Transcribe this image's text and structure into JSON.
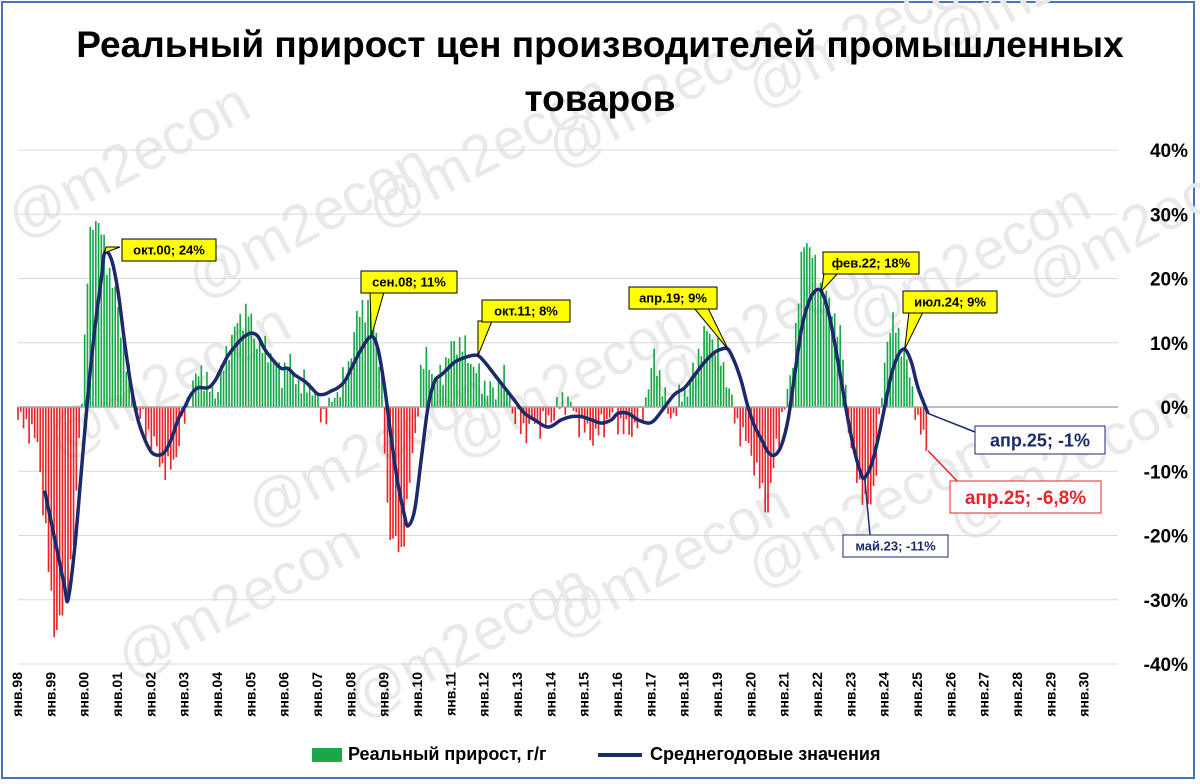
{
  "chart_data": {
    "type": "bar+line",
    "title": "Реальный прирост цен производителей промышленных товаров",
    "ylim": [
      -40,
      40
    ],
    "y_ticks": [
      "40%",
      "30%",
      "20%",
      "10%",
      "0%",
      "-10%",
      "-20%",
      "-30%",
      "-40%"
    ],
    "y_tick_values": [
      40,
      30,
      20,
      10,
      0,
      -10,
      -20,
      -30,
      -40
    ],
    "x_tick_labels": [
      "янв.98",
      "янв.99",
      "янв.00",
      "янв.01",
      "янв.02",
      "янв.03",
      "янв.04",
      "янв.05",
      "янв.06",
      "янв.07",
      "янв.08",
      "янв.09",
      "янв.10",
      "янв.11",
      "янв.12",
      "янв.13",
      "янв.14",
      "янв.15",
      "янв.16",
      "янв.17",
      "янв.18",
      "янв.19",
      "янв.20",
      "янв.21",
      "янв.22",
      "янв.23",
      "янв.24",
      "янв.25",
      "янв.26",
      "янв.27",
      "янв.28",
      "янв.29",
      "янв.30"
    ],
    "x_start_year": 1998,
    "x_end_year": 2031,
    "grid": true,
    "legend_position": "bottom",
    "colors": {
      "positive": "#19a74a",
      "negative": "#e8252b",
      "line": "#1b2a6b",
      "grid": "#d9d9d9",
      "callout_fill": "#ffff00"
    },
    "series": [
      {
        "name": "Реальный прирост, г/г",
        "type": "bar",
        "anchors": [
          [
            1998.0,
            -2
          ],
          [
            1998.3,
            -3
          ],
          [
            1998.6,
            -6
          ],
          [
            1998.8,
            -18
          ],
          [
            1999.0,
            -30
          ],
          [
            1999.1,
            -35
          ],
          [
            1999.3,
            -33
          ],
          [
            1999.5,
            -28
          ],
          [
            1999.7,
            -20
          ],
          [
            1999.8,
            -8
          ],
          [
            2000.0,
            10
          ],
          [
            2000.1,
            22
          ],
          [
            2000.2,
            28
          ],
          [
            2000.3,
            30
          ],
          [
            2000.5,
            27
          ],
          [
            2000.7,
            22
          ],
          [
            2000.9,
            18
          ],
          [
            2001.1,
            12
          ],
          [
            2001.3,
            5
          ],
          [
            2001.5,
            1
          ],
          [
            2001.7,
            -2
          ],
          [
            2001.9,
            -4
          ],
          [
            2002.1,
            -6
          ],
          [
            2002.3,
            -9
          ],
          [
            2002.5,
            -10
          ],
          [
            2002.7,
            -8
          ],
          [
            2002.9,
            -4
          ],
          [
            2003.1,
            1
          ],
          [
            2003.3,
            4
          ],
          [
            2003.5,
            6
          ],
          [
            2003.7,
            3
          ],
          [
            2003.9,
            2
          ],
          [
            2004.1,
            5
          ],
          [
            2004.3,
            9
          ],
          [
            2004.5,
            12
          ],
          [
            2004.7,
            14
          ],
          [
            2004.9,
            15
          ],
          [
            2005.1,
            11
          ],
          [
            2005.3,
            9
          ],
          [
            2005.5,
            9
          ],
          [
            2005.7,
            7
          ],
          [
            2005.9,
            5
          ],
          [
            2006.1,
            7
          ],
          [
            2006.3,
            5
          ],
          [
            2006.5,
            3
          ],
          [
            2006.7,
            4
          ],
          [
            2006.9,
            2
          ],
          [
            2007.1,
            -1
          ],
          [
            2007.3,
            -1
          ],
          [
            2007.5,
            2
          ],
          [
            2007.7,
            3
          ],
          [
            2007.9,
            6
          ],
          [
            2008.1,
            12
          ],
          [
            2008.3,
            16
          ],
          [
            2008.5,
            15
          ],
          [
            2008.7,
            14
          ],
          [
            2008.9,
            5
          ],
          [
            2009.1,
            -18
          ],
          [
            2009.3,
            -21
          ],
          [
            2009.5,
            -23
          ],
          [
            2009.7,
            -14
          ],
          [
            2009.9,
            -5
          ],
          [
            2010.1,
            6
          ],
          [
            2010.3,
            8
          ],
          [
            2010.5,
            4
          ],
          [
            2010.7,
            5
          ],
          [
            2010.9,
            8
          ],
          [
            2011.1,
            10
          ],
          [
            2011.3,
            10
          ],
          [
            2011.5,
            8
          ],
          [
            2011.7,
            6
          ],
          [
            2011.9,
            4
          ],
          [
            2012.1,
            3
          ],
          [
            2012.3,
            2
          ],
          [
            2012.5,
            5
          ],
          [
            2012.7,
            3
          ],
          [
            2012.9,
            -2
          ],
          [
            2013.1,
            -3
          ],
          [
            2013.3,
            -4
          ],
          [
            2013.5,
            -2
          ],
          [
            2013.7,
            -3
          ],
          [
            2013.9,
            -2
          ],
          [
            2014.1,
            -1
          ],
          [
            2014.3,
            1
          ],
          [
            2014.5,
            1
          ],
          [
            2014.7,
            -1
          ],
          [
            2014.9,
            -3
          ],
          [
            2015.1,
            -4
          ],
          [
            2015.3,
            -5
          ],
          [
            2015.5,
            -3
          ],
          [
            2015.7,
            -2
          ],
          [
            2015.9,
            -1
          ],
          [
            2016.1,
            -3
          ],
          [
            2016.3,
            -4
          ],
          [
            2016.5,
            -3
          ],
          [
            2016.7,
            -2
          ],
          [
            2016.9,
            3
          ],
          [
            2017.1,
            8
          ],
          [
            2017.3,
            4
          ],
          [
            2017.5,
            -1
          ],
          [
            2017.7,
            -1
          ],
          [
            2017.9,
            2
          ],
          [
            2018.1,
            3
          ],
          [
            2018.3,
            6
          ],
          [
            2018.5,
            10
          ],
          [
            2018.7,
            12
          ],
          [
            2018.9,
            10
          ],
          [
            2019.1,
            7
          ],
          [
            2019.3,
            4
          ],
          [
            2019.5,
            -2
          ],
          [
            2019.7,
            -4
          ],
          [
            2019.9,
            -6
          ],
          [
            2020.1,
            -9
          ],
          [
            2020.3,
            -13
          ],
          [
            2020.5,
            -16
          ],
          [
            2020.7,
            -8
          ],
          [
            2020.9,
            -2
          ],
          [
            2021.1,
            2
          ],
          [
            2021.3,
            10
          ],
          [
            2021.5,
            22
          ],
          [
            2021.6,
            27
          ],
          [
            2021.8,
            24
          ],
          [
            2022.0,
            20
          ],
          [
            2022.2,
            17
          ],
          [
            2022.4,
            16
          ],
          [
            2022.6,
            12
          ],
          [
            2022.8,
            7
          ],
          [
            2022.9,
            -3
          ],
          [
            2023.1,
            -9
          ],
          [
            2023.3,
            -13
          ],
          [
            2023.5,
            -16
          ],
          [
            2023.7,
            -12
          ],
          [
            2023.9,
            1
          ],
          [
            2024.1,
            12
          ],
          [
            2024.3,
            13
          ],
          [
            2024.5,
            10
          ],
          [
            2024.7,
            6
          ],
          [
            2024.9,
            1
          ],
          [
            2025.0,
            -3
          ],
          [
            2025.2,
            -5
          ],
          [
            2025.3,
            -6.8
          ]
        ]
      },
      {
        "name": "Среднегодовые значения",
        "type": "line",
        "points": [
          [
            1998.8,
            -13
          ],
          [
            1999.0,
            -18
          ],
          [
            1999.2,
            -23
          ],
          [
            1999.4,
            -28
          ],
          [
            1999.5,
            -30
          ],
          [
            1999.7,
            -22
          ],
          [
            1999.9,
            -10
          ],
          [
            2000.1,
            2
          ],
          [
            2000.3,
            12
          ],
          [
            2000.5,
            20
          ],
          [
            2000.6,
            24
          ],
          [
            2000.8,
            23
          ],
          [
            2001.0,
            18
          ],
          [
            2001.2,
            10
          ],
          [
            2001.4,
            3
          ],
          [
            2001.6,
            -2
          ],
          [
            2001.8,
            -5
          ],
          [
            2002.0,
            -7
          ],
          [
            2002.2,
            -7.5
          ],
          [
            2002.4,
            -7
          ],
          [
            2002.6,
            -5
          ],
          [
            2002.8,
            -2
          ],
          [
            2003.0,
            0
          ],
          [
            2003.2,
            2
          ],
          [
            2003.4,
            3
          ],
          [
            2003.7,
            3
          ],
          [
            2003.9,
            4
          ],
          [
            2004.1,
            6
          ],
          [
            2004.3,
            8
          ],
          [
            2004.6,
            10
          ],
          [
            2004.8,
            11
          ],
          [
            2005.0,
            11.5
          ],
          [
            2005.2,
            11
          ],
          [
            2005.4,
            9
          ],
          [
            2005.7,
            7
          ],
          [
            2005.9,
            6
          ],
          [
            2006.1,
            6
          ],
          [
            2006.3,
            5
          ],
          [
            2006.6,
            4
          ],
          [
            2006.8,
            3
          ],
          [
            2007.0,
            2
          ],
          [
            2007.2,
            2
          ],
          [
            2007.4,
            2.5
          ],
          [
            2007.6,
            3
          ],
          [
            2007.8,
            4
          ],
          [
            2008.0,
            6
          ],
          [
            2008.3,
            9
          ],
          [
            2008.6,
            11
          ],
          [
            2008.8,
            9
          ],
          [
            2009.0,
            3
          ],
          [
            2009.2,
            -5
          ],
          [
            2009.4,
            -12
          ],
          [
            2009.6,
            -17
          ],
          [
            2009.7,
            -18.5
          ],
          [
            2009.9,
            -16
          ],
          [
            2010.1,
            -8
          ],
          [
            2010.3,
            0
          ],
          [
            2010.5,
            4
          ],
          [
            2010.7,
            5
          ],
          [
            2010.9,
            6
          ],
          [
            2011.1,
            7
          ],
          [
            2011.3,
            7.5
          ],
          [
            2011.6,
            8
          ],
          [
            2011.8,
            8
          ],
          [
            2012.0,
            7
          ],
          [
            2012.3,
            5
          ],
          [
            2012.6,
            3
          ],
          [
            2012.9,
            1
          ],
          [
            2013.2,
            -1
          ],
          [
            2013.5,
            -2
          ],
          [
            2013.8,
            -3
          ],
          [
            2014.0,
            -3
          ],
          [
            2014.3,
            -2
          ],
          [
            2014.6,
            -1.5
          ],
          [
            2014.9,
            -1.5
          ],
          [
            2015.2,
            -2
          ],
          [
            2015.5,
            -2.5
          ],
          [
            2015.8,
            -2
          ],
          [
            2016.0,
            -1
          ],
          [
            2016.3,
            -1
          ],
          [
            2016.6,
            -2
          ],
          [
            2016.9,
            -2.5
          ],
          [
            2017.1,
            -2
          ],
          [
            2017.4,
            0
          ],
          [
            2017.7,
            2
          ],
          [
            2018.0,
            3
          ],
          [
            2018.3,
            5
          ],
          [
            2018.6,
            7
          ],
          [
            2018.9,
            8.5
          ],
          [
            2019.1,
            9
          ],
          [
            2019.3,
            9
          ],
          [
            2019.5,
            7
          ],
          [
            2019.7,
            4
          ],
          [
            2019.9,
            0
          ],
          [
            2020.1,
            -3
          ],
          [
            2020.3,
            -5
          ],
          [
            2020.5,
            -7
          ],
          [
            2020.7,
            -7.5
          ],
          [
            2020.9,
            -6
          ],
          [
            2021.1,
            -2
          ],
          [
            2021.3,
            5
          ],
          [
            2021.5,
            12
          ],
          [
            2021.7,
            16
          ],
          [
            2021.9,
            18
          ],
          [
            2022.1,
            18
          ],
          [
            2022.3,
            15
          ],
          [
            2022.5,
            10
          ],
          [
            2022.7,
            4
          ],
          [
            2022.9,
            -2
          ],
          [
            2023.1,
            -7
          ],
          [
            2023.3,
            -10.5
          ],
          [
            2023.4,
            -11
          ],
          [
            2023.6,
            -9
          ],
          [
            2023.8,
            -5
          ],
          [
            2024.0,
            0
          ],
          [
            2024.2,
            5
          ],
          [
            2024.4,
            8
          ],
          [
            2024.6,
            9
          ],
          [
            2024.8,
            7
          ],
          [
            2025.0,
            3
          ],
          [
            2025.3,
            -1
          ]
        ]
      }
    ],
    "annotations": [
      {
        "id": "okt00",
        "text": "окт.00; 24%",
        "style": "yellow",
        "x": 2000.6,
        "y": 24
      },
      {
        "id": "sen08",
        "text": "сен.08; 11%",
        "style": "yellow",
        "x": 2008.6,
        "y": 11
      },
      {
        "id": "okt11",
        "text": "окт.11; 8%",
        "style": "yellow",
        "x": 2011.8,
        "y": 8
      },
      {
        "id": "apr19",
        "text": "апр.19; 9%",
        "style": "yellow",
        "x": 2019.3,
        "y": 9
      },
      {
        "id": "fev22",
        "text": "фев.22; 18%",
        "style": "yellow",
        "x": 2022.1,
        "y": 18
      },
      {
        "id": "iul24",
        "text": "июл.24; 9%",
        "style": "yellow",
        "x": 2024.6,
        "y": 9
      },
      {
        "id": "apr25-line",
        "text": "апр.25; -1%",
        "style": "navy",
        "x": 2025.3,
        "y": -1
      },
      {
        "id": "apr25-bar",
        "text": "апр.25; -6,8%",
        "style": "red",
        "x": 2025.3,
        "y": -6.8
      },
      {
        "id": "mai23",
        "text": "май.23; -11%",
        "style": "navy-small",
        "x": 2023.4,
        "y": -11
      }
    ],
    "watermark": "@m2econ"
  }
}
